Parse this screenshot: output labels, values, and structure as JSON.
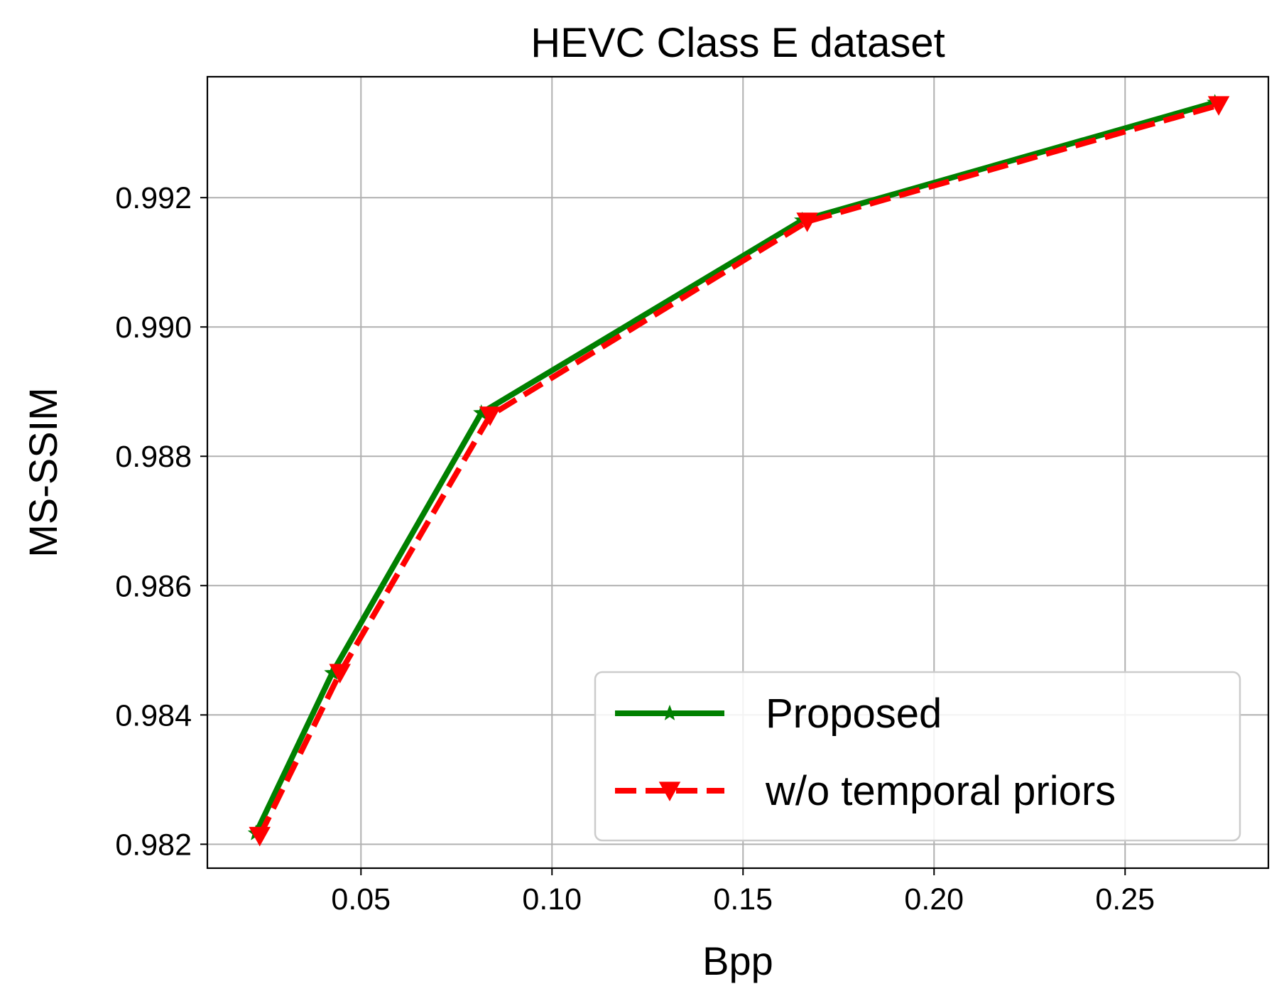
{
  "chart_data": {
    "type": "line",
    "title": "HEVC Class E dataset",
    "xlabel": "Bpp",
    "ylabel": "MS-SSIM",
    "xlim": [
      0.0098,
      0.2875
    ],
    "ylim": [
      0.98163,
      0.99387
    ],
    "xticks": [
      0.05,
      0.1,
      0.15,
      0.2,
      0.25
    ],
    "xtick_labels": [
      "0.05",
      "0.10",
      "0.15",
      "0.20",
      "0.25"
    ],
    "yticks": [
      0.982,
      0.984,
      0.986,
      0.988,
      0.99,
      0.992
    ],
    "ytick_labels": [
      "0.982",
      "0.984",
      "0.986",
      "0.988",
      "0.990",
      "0.992"
    ],
    "grid": true,
    "legend_position": "bottom-right",
    "series": [
      {
        "name": "Proposed",
        "color": "#008000",
        "line_style": "solid",
        "marker": "star",
        "x": [
          0.0225,
          0.0425,
          0.0815,
          0.1655,
          0.2735
        ],
        "y": [
          0.98217,
          0.98465,
          0.98867,
          0.99165,
          0.99347
        ]
      },
      {
        "name": "w/o temporal priors",
        "color": "#ff0000",
        "line_style": "dashed",
        "marker": "triangle-down",
        "x": [
          0.0235,
          0.0445,
          0.0838,
          0.1668,
          0.2745
        ],
        "y": [
          0.98213,
          0.98465,
          0.98863,
          0.99163,
          0.99343
        ]
      }
    ]
  }
}
